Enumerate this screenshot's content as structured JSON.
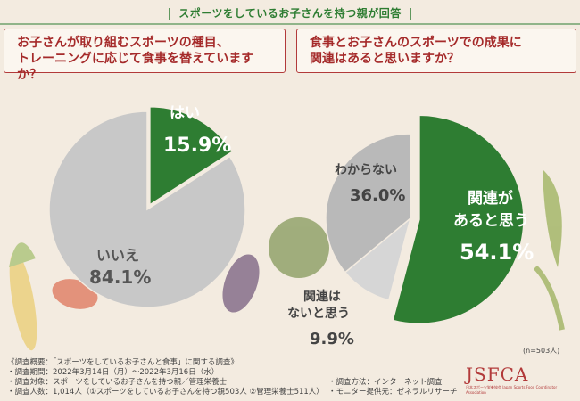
{
  "header": {
    "banner": "スポーツをしているお子さんを持つ親が回答"
  },
  "questions": {
    "left_line1": "お子さんが取り組むスポーツの種目、",
    "left_line2": "トレーニングに応じて食事を替えていますか？",
    "right_line1": "食事とお子さんのスポーツでの成果に",
    "right_line2": "関連はあると思いますか？"
  },
  "chart_data": [
    {
      "type": "pie",
      "title": "お子さんが取り組むスポーツの種目、トレーニングに応じて食事を替えていますか？",
      "slices": [
        {
          "label": "はい",
          "value": 15.9,
          "display": "15.9%",
          "color": "#2e7d32"
        },
        {
          "label": "いいえ",
          "value": 84.1,
          "display": "84.1%",
          "color": "#c8c8c8"
        }
      ]
    },
    {
      "type": "pie",
      "title": "食事とお子さんのスポーツでの成果に関連はあると思いますか？",
      "slices": [
        {
          "label": "関連があると思う",
          "label_line1": "関連が",
          "label_line2": "あると思う",
          "value": 54.1,
          "display": "54.1%",
          "color": "#2e7d32"
        },
        {
          "label": "関連はないと思う",
          "label_line1": "関連は",
          "label_line2": "ないと思う",
          "value": 9.9,
          "display": "9.9%",
          "color": "#d6d6d6"
        },
        {
          "label": "わからない",
          "value": 36.0,
          "display": "36.0%",
          "color": "#b9b9b9"
        }
      ]
    }
  ],
  "note": "(n=503人)",
  "footer": {
    "line1": "《調査概要：「スポーツをしているお子さんと食事」に関する調査》",
    "line2": "・調査期間：2022年3月14日（月）～2022年3月16日（水）",
    "line3": "・調査対象：スポーツをしているお子さんを持つ親／管理栄養士",
    "line4": "・調査人数：1,014人（①スポーツをしているお子さんを持つ親503人 ②管理栄養士511人）",
    "method": "・調査方法：インターネット調査",
    "monitor": "・モニター提供元：ゼネラルリサーチ"
  },
  "logo": {
    "text": "JSFCA",
    "sub": "日本スポーツ栄養協会 Japan Sports Food Coordinator Association"
  },
  "colors": {
    "accent": "#2e7d32",
    "title_red": "#a52a2a",
    "background": "#f3ebe0"
  }
}
